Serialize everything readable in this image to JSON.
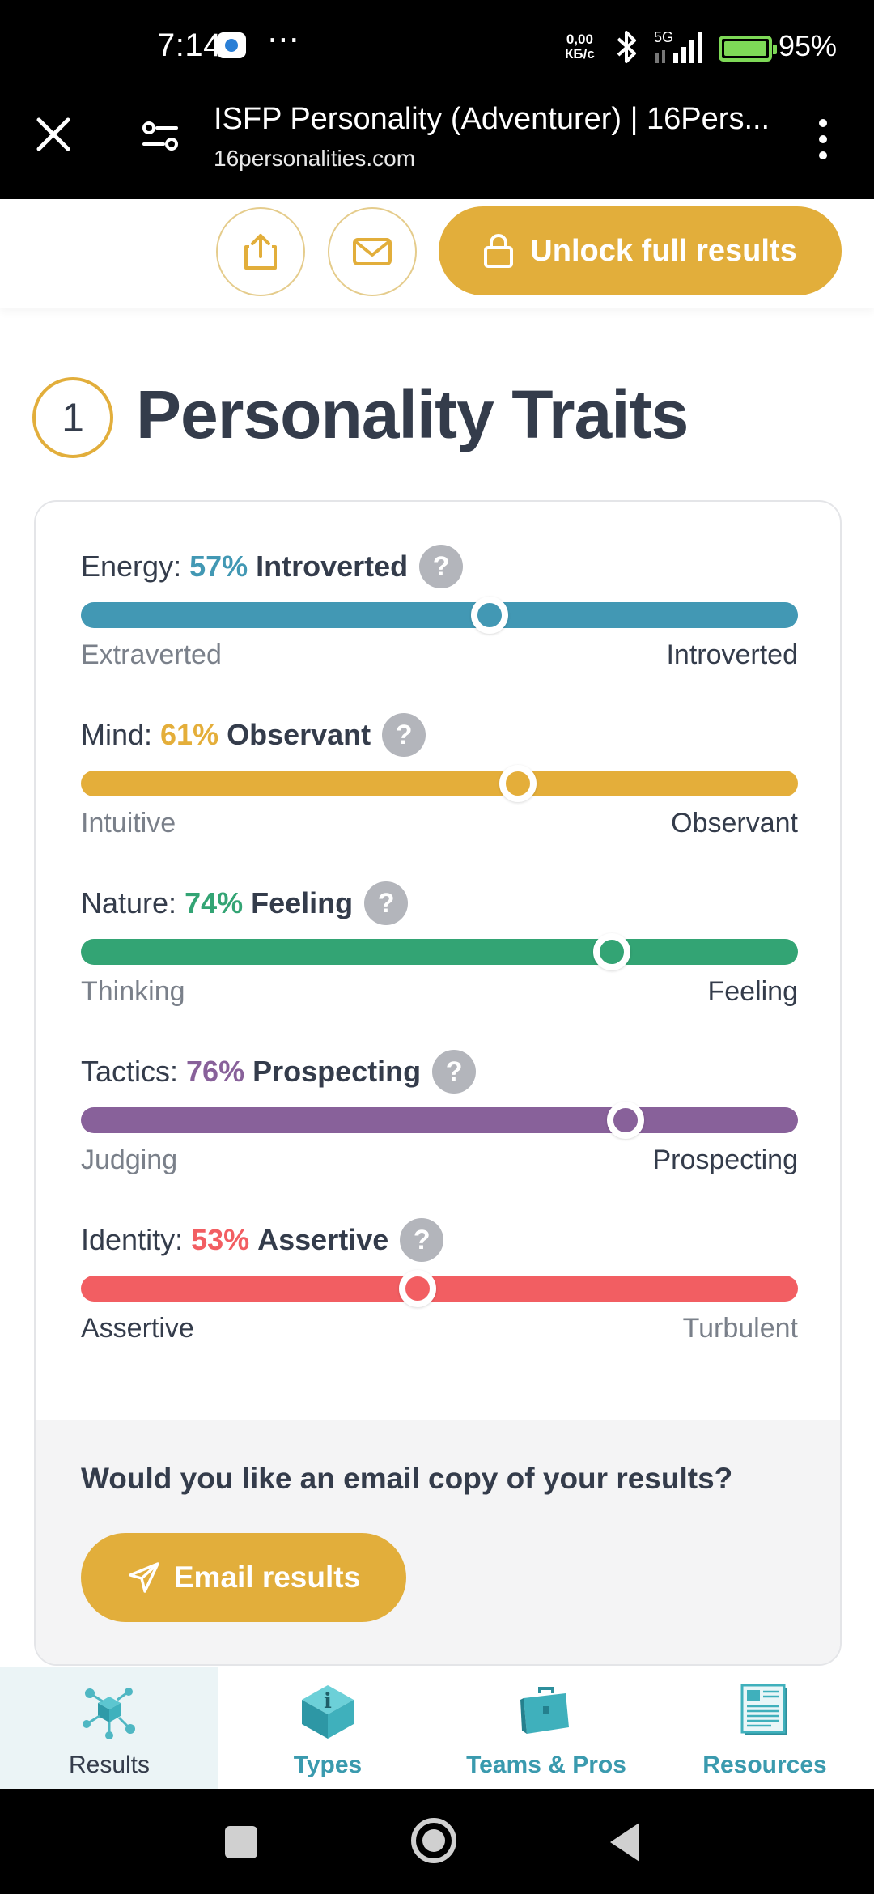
{
  "status_bar": {
    "time": "7:14",
    "more": "⋯",
    "net_speed_value": "0,00",
    "net_speed_unit": "КБ/с",
    "network": "5G",
    "battery_pct": "95%"
  },
  "browser": {
    "title": "ISFP Personality (Adventurer) | 16Pers...",
    "url": "16personalities.com"
  },
  "actions": {
    "unlock_label": "Unlock full results"
  },
  "section": {
    "number": "1",
    "title": "Personality Traits"
  },
  "traits": [
    {
      "label": "Energy:",
      "percent": "57%",
      "type": "Introverted",
      "level": 57,
      "left_pole": "Extraverted",
      "right_pole": "Introverted",
      "color": "#4298b4"
    },
    {
      "label": "Mind:",
      "percent": "61%",
      "type": "Observant",
      "level": 61,
      "left_pole": "Intuitive",
      "right_pole": "Observant",
      "color": "#e4ae3a"
    },
    {
      "label": "Nature:",
      "percent": "74%",
      "type": "Feeling",
      "level": 74,
      "left_pole": "Thinking",
      "right_pole": "Feeling",
      "color": "#33a474"
    },
    {
      "label": "Tactics:",
      "percent": "76%",
      "type": "Prospecting",
      "level": 76,
      "left_pole": "Judging",
      "right_pole": "Prospecting",
      "color": "#88619a"
    },
    {
      "label": "Identity:",
      "percent": "53%",
      "type": "Assertive",
      "level": 47,
      "left_pole": "Assertive",
      "right_pole": "Turbulent",
      "color": "#f25e62"
    }
  ],
  "help_glyph": "?",
  "email": {
    "question": "Would you like an email copy of your results?",
    "button_label": "Email results"
  },
  "bottom_nav": {
    "items": [
      {
        "label": "Results",
        "icon": "results-icon",
        "active": true
      },
      {
        "label": "Types",
        "icon": "types-icon",
        "active": false
      },
      {
        "label": "Teams & Pros",
        "icon": "teams-icon",
        "active": false
      },
      {
        "label": "Resources",
        "icon": "resources-icon",
        "active": false
      }
    ]
  },
  "colors": {
    "accent": "#e2ae3b",
    "heading": "#343c4b",
    "teal": "#3a9aae"
  }
}
